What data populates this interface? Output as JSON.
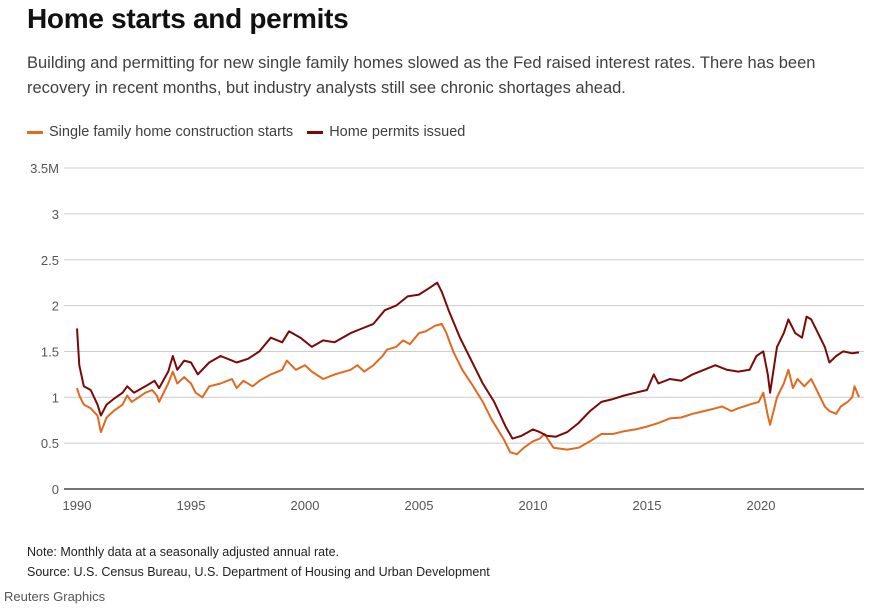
{
  "header": {
    "title": "Home starts and permits",
    "subtitle": "Building and permitting for new single family homes slowed as the Fed raised interest rates. There has been recovery in recent months, but industry analysts still see chronic shortages ahead."
  },
  "footer": {
    "note": "Note: Monthly data at a seasonally adjusted annual rate.",
    "source": "Source: U.S. Census Bureau, U.S. Department of Housing and Urban Development",
    "credit": "Reuters Graphics"
  },
  "colors": {
    "starts": "#e06a1f",
    "permits": "#7a0a0a",
    "grid": "#cccccc",
    "axis": "#222222"
  },
  "chart_data": {
    "type": "line",
    "title": "Home starts and permits",
    "xlabel": "",
    "ylabel": "",
    "xlim": [
      1990,
      2024.5
    ],
    "ylim": [
      0,
      3.5
    ],
    "grid": true,
    "legend": "top-left",
    "x_ticks": [
      1990,
      1995,
      2000,
      2005,
      2010,
      2015,
      2020
    ],
    "x_tick_labels": [
      "1990",
      "1995",
      "2000",
      "2005",
      "2010",
      "2015",
      "2020"
    ],
    "y_ticks": [
      0,
      0.5,
      1,
      1.5,
      2,
      2.5,
      3,
      3.5
    ],
    "y_tick_labels": [
      "0",
      "0.5",
      "1",
      "1.5",
      "2",
      "2.5",
      "3",
      "3.5M"
    ],
    "series": [
      {
        "name": "Single family home construction starts",
        "key": "starts",
        "x": [
          1990.0,
          1990.1,
          1990.3,
          1990.6,
          1990.9,
          1991.05,
          1991.3,
          1991.6,
          1992.0,
          1992.2,
          1992.4,
          1992.7,
          1993.0,
          1993.3,
          1993.5,
          1993.6,
          1994.0,
          1994.2,
          1994.4,
          1994.7,
          1995.0,
          1995.2,
          1995.5,
          1995.8,
          1996.3,
          1996.8,
          1997.0,
          1997.3,
          1997.7,
          1998.0,
          1998.5,
          1999.0,
          1999.2,
          1999.6,
          2000.0,
          2000.3,
          2000.8,
          2001.3,
          2002.0,
          2002.3,
          2002.6,
          2003.0,
          2003.4,
          2003.6,
          2004.0,
          2004.3,
          2004.6,
          2005.0,
          2005.3,
          2005.7,
          2006.0,
          2006.2,
          2006.5,
          2006.9,
          2007.3,
          2007.8,
          2008.2,
          2008.7,
          2009.0,
          2009.3,
          2009.6,
          2010.0,
          2010.3,
          2010.5,
          2010.9,
          2011.5,
          2012.0,
          2012.5,
          2013.0,
          2013.5,
          2014.0,
          2014.5,
          2015.0,
          2015.5,
          2016.0,
          2016.5,
          2017.0,
          2017.5,
          2018.0,
          2018.3,
          2018.7,
          2019.0,
          2019.5,
          2019.9,
          2020.1,
          2020.3,
          2020.4,
          2020.7,
          2021.0,
          2021.2,
          2021.4,
          2021.6,
          2021.9,
          2022.2,
          2022.5,
          2022.8,
          2023.0,
          2023.3,
          2023.5,
          2023.8,
          2024.0,
          2024.1,
          2024.3
        ],
        "values": [
          1.1,
          1.02,
          0.92,
          0.88,
          0.8,
          0.62,
          0.78,
          0.85,
          0.92,
          1.02,
          0.95,
          1.0,
          1.05,
          1.08,
          1.02,
          0.95,
          1.15,
          1.28,
          1.15,
          1.22,
          1.15,
          1.05,
          1.0,
          1.12,
          1.15,
          1.2,
          1.1,
          1.18,
          1.12,
          1.18,
          1.25,
          1.3,
          1.4,
          1.3,
          1.35,
          1.28,
          1.2,
          1.25,
          1.3,
          1.35,
          1.28,
          1.35,
          1.45,
          1.52,
          1.55,
          1.62,
          1.58,
          1.7,
          1.72,
          1.78,
          1.8,
          1.7,
          1.5,
          1.3,
          1.15,
          0.95,
          0.75,
          0.55,
          0.4,
          0.38,
          0.45,
          0.52,
          0.55,
          0.6,
          0.45,
          0.43,
          0.45,
          0.52,
          0.6,
          0.6,
          0.63,
          0.65,
          0.68,
          0.72,
          0.77,
          0.78,
          0.82,
          0.85,
          0.88,
          0.9,
          0.85,
          0.88,
          0.92,
          0.95,
          1.05,
          0.8,
          0.7,
          1.0,
          1.15,
          1.3,
          1.1,
          1.2,
          1.12,
          1.2,
          1.05,
          0.9,
          0.85,
          0.82,
          0.9,
          0.95,
          1.0,
          1.12,
          1.0
        ]
      },
      {
        "name": "Home permits issued",
        "key": "permits",
        "x": [
          1990.0,
          1990.1,
          1990.3,
          1990.6,
          1990.9,
          1991.05,
          1991.3,
          1991.6,
          1992.0,
          1992.2,
          1992.5,
          1993.0,
          1993.4,
          1993.6,
          1994.0,
          1994.2,
          1994.4,
          1994.7,
          1995.0,
          1995.3,
          1995.8,
          1996.3,
          1996.8,
          1997.0,
          1997.5,
          1998.0,
          1998.5,
          1999.0,
          1999.3,
          1999.8,
          2000.3,
          2000.8,
          2001.3,
          2002.0,
          2002.5,
          2003.0,
          2003.5,
          2004.0,
          2004.5,
          2005.0,
          2005.5,
          2005.8,
          2006.0,
          2006.3,
          2006.8,
          2007.3,
          2007.8,
          2008.3,
          2008.8,
          2009.1,
          2009.5,
          2010.0,
          2010.3,
          2010.6,
          2011.0,
          2011.5,
          2012.0,
          2012.5,
          2013.0,
          2013.5,
          2014.0,
          2014.5,
          2015.0,
          2015.3,
          2015.5,
          2016.0,
          2016.5,
          2017.0,
          2017.5,
          2018.0,
          2018.5,
          2019.0,
          2019.5,
          2019.8,
          2020.1,
          2020.3,
          2020.4,
          2020.7,
          2021.0,
          2021.2,
          2021.5,
          2021.8,
          2022.0,
          2022.2,
          2022.5,
          2022.8,
          2023.0,
          2023.3,
          2023.6,
          2024.0,
          2024.3
        ],
        "values": [
          1.75,
          1.35,
          1.12,
          1.08,
          0.92,
          0.8,
          0.92,
          0.98,
          1.05,
          1.12,
          1.05,
          1.12,
          1.18,
          1.1,
          1.28,
          1.45,
          1.3,
          1.4,
          1.38,
          1.25,
          1.38,
          1.45,
          1.4,
          1.38,
          1.42,
          1.5,
          1.65,
          1.6,
          1.72,
          1.65,
          1.55,
          1.62,
          1.6,
          1.7,
          1.75,
          1.8,
          1.95,
          2.0,
          2.1,
          2.12,
          2.2,
          2.25,
          2.15,
          1.95,
          1.65,
          1.4,
          1.15,
          0.95,
          0.68,
          0.55,
          0.58,
          0.65,
          0.62,
          0.58,
          0.57,
          0.62,
          0.72,
          0.85,
          0.95,
          0.98,
          1.02,
          1.05,
          1.08,
          1.25,
          1.15,
          1.2,
          1.18,
          1.25,
          1.3,
          1.35,
          1.3,
          1.28,
          1.3,
          1.45,
          1.5,
          1.25,
          1.05,
          1.55,
          1.7,
          1.85,
          1.7,
          1.65,
          1.88,
          1.85,
          1.7,
          1.55,
          1.38,
          1.45,
          1.5,
          1.48,
          1.49
        ]
      }
    ]
  }
}
